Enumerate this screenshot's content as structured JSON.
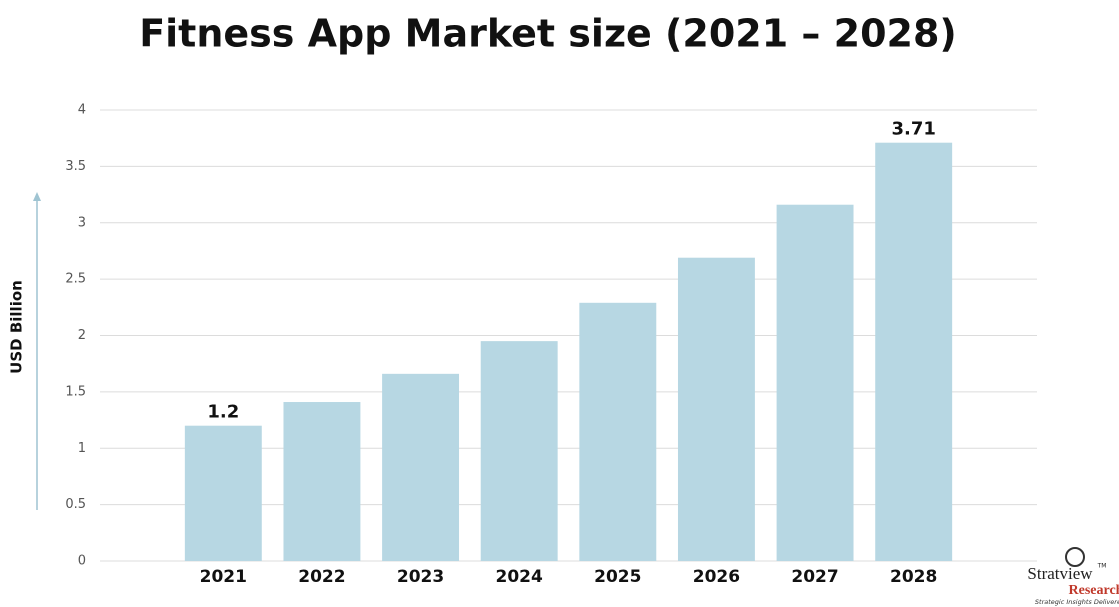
{
  "chart_data": {
    "type": "bar",
    "title": "Fitness App Market size (2021 – 2028)",
    "y_label": "USD Billion",
    "categories": [
      "2021",
      "2022",
      "2023",
      "2024",
      "2025",
      "2026",
      "2027",
      "2028"
    ],
    "values": [
      1.2,
      1.41,
      1.66,
      1.95,
      2.29,
      2.69,
      3.16,
      3.71
    ],
    "value_labels": [
      "1.2",
      null,
      null,
      null,
      null,
      null,
      null,
      "3.71"
    ],
    "color": "#b7d7e3",
    "ylim": [
      0,
      4
    ],
    "yticks": [
      0,
      0.5,
      1,
      1.5,
      2,
      2.5,
      3,
      3.5,
      4
    ],
    "grid": true
  },
  "logo": {
    "name": "Stratview",
    "trademark": "TM",
    "sub": "Research",
    "tagline": "Strategic Insights Delivered"
  }
}
